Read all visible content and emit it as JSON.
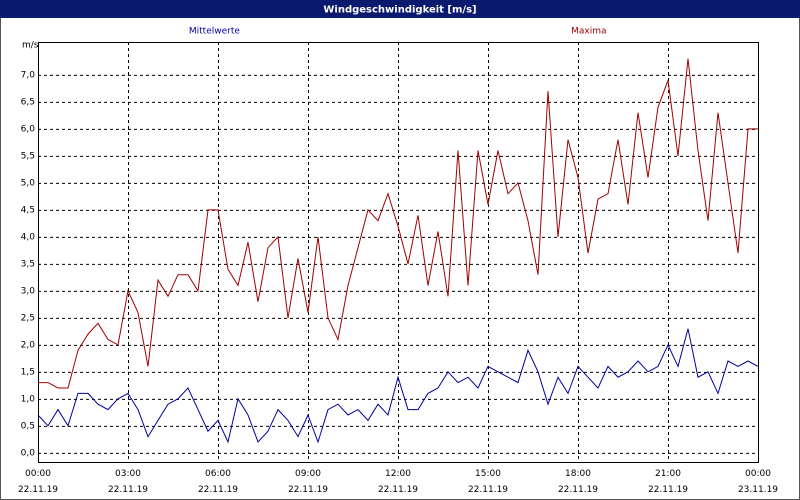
{
  "chart_data": {
    "type": "line",
    "title": "Windgeschwindigkeit [m/s]",
    "y_label": "m/s",
    "x": [
      0,
      20,
      40,
      60,
      80,
      100,
      120,
      140,
      160,
      180,
      200,
      220,
      240,
      260,
      280,
      300,
      320,
      340,
      360,
      380,
      400,
      420,
      440,
      460,
      480,
      500,
      520,
      540,
      560,
      580,
      600,
      620,
      640,
      660,
      680,
      700,
      720,
      740,
      760,
      780,
      800,
      820,
      840,
      860,
      880,
      900,
      920,
      940,
      960,
      980,
      1000,
      1020,
      1040,
      1060,
      1080,
      1100,
      1120,
      1140,
      1160,
      1180,
      1200,
      1220,
      1240,
      1260,
      1280,
      1300,
      1320,
      1340,
      1360,
      1380,
      1400,
      1420,
      1440
    ],
    "xlim": [
      0,
      1440
    ],
    "xticks": [
      {
        "value": 0,
        "label": "00:00\n22.11.19"
      },
      {
        "value": 180,
        "label": "03:00\n22.11.19"
      },
      {
        "value": 360,
        "label": "06:00\n22.11.19"
      },
      {
        "value": 540,
        "label": "09:00\n22.11.19"
      },
      {
        "value": 720,
        "label": "12:00\n22.11.19"
      },
      {
        "value": 900,
        "label": "15:00\n22.11.19"
      },
      {
        "value": 1080,
        "label": "18:00\n22.11.19"
      },
      {
        "value": 1260,
        "label": "21:00\n22.11.19"
      },
      {
        "value": 1440,
        "label": "00:00\n23.11.19"
      }
    ],
    "ylim": [
      -0.17,
      7.61
    ],
    "yticks": [
      {
        "value": 0,
        "label": "0,0"
      },
      {
        "value": 0.5,
        "label": "0,5"
      },
      {
        "value": 1,
        "label": "1,0"
      },
      {
        "value": 1.5,
        "label": "1,5"
      },
      {
        "value": 2,
        "label": "2,0"
      },
      {
        "value": 2.5,
        "label": "2,5"
      },
      {
        "value": 3,
        "label": "3,0"
      },
      {
        "value": 3.5,
        "label": "3,5"
      },
      {
        "value": 4,
        "label": "4,0"
      },
      {
        "value": 4.5,
        "label": "4,5"
      },
      {
        "value": 5,
        "label": "5,0"
      },
      {
        "value": 5.5,
        "label": "5,5"
      },
      {
        "value": 6,
        "label": "6,0"
      },
      {
        "value": 6.5,
        "label": "6,5"
      },
      {
        "value": 7,
        "label": "7,0"
      }
    ],
    "grid": true,
    "series": [
      {
        "name": "Mittelwerte",
        "color": "#0000a0",
        "values": [
          0.7,
          0.5,
          0.8,
          0.5,
          1.1,
          1.1,
          0.9,
          0.8,
          1.0,
          1.1,
          0.8,
          0.3,
          0.6,
          0.9,
          1.0,
          1.2,
          0.8,
          0.4,
          0.6,
          0.2,
          1.0,
          0.7,
          0.2,
          0.4,
          0.8,
          0.6,
          0.3,
          0.7,
          0.2,
          0.8,
          0.9,
          0.7,
          0.8,
          0.6,
          0.9,
          0.7,
          1.4,
          0.8,
          0.8,
          1.1,
          1.2,
          1.5,
          1.3,
          1.4,
          1.2,
          1.6,
          1.5,
          1.4,
          1.3,
          1.9,
          1.5,
          0.9,
          1.4,
          1.1,
          1.6,
          1.4,
          1.2,
          1.6,
          1.4,
          1.5,
          1.7,
          1.5,
          1.6,
          2.0,
          1.6,
          2.3,
          1.4,
          1.5,
          1.1,
          1.7,
          1.6,
          1.7,
          1.6
        ]
      },
      {
        "name": "Maxima",
        "color": "#a00000",
        "values": [
          1.3,
          1.3,
          1.2,
          1.2,
          1.9,
          2.2,
          2.4,
          2.1,
          2.0,
          3.0,
          2.6,
          1.6,
          3.2,
          2.9,
          3.3,
          3.3,
          3.0,
          4.5,
          4.5,
          3.4,
          3.1,
          3.9,
          2.8,
          3.8,
          4.0,
          2.5,
          3.6,
          2.6,
          4.0,
          2.5,
          2.1,
          3.1,
          3.8,
          4.5,
          4.3,
          4.8,
          4.2,
          3.5,
          4.4,
          3.1,
          4.1,
          2.9,
          5.6,
          3.1,
          5.6,
          4.6,
          5.6,
          4.8,
          5.0,
          4.3,
          3.3,
          6.7,
          4.0,
          5.8,
          5.1,
          3.7,
          4.7,
          4.8,
          5.8,
          4.6,
          6.3,
          5.1,
          6.4,
          6.9,
          5.5,
          7.3,
          5.6,
          4.3,
          6.3,
          5.0,
          3.7,
          6.0,
          6.0
        ]
      }
    ]
  }
}
